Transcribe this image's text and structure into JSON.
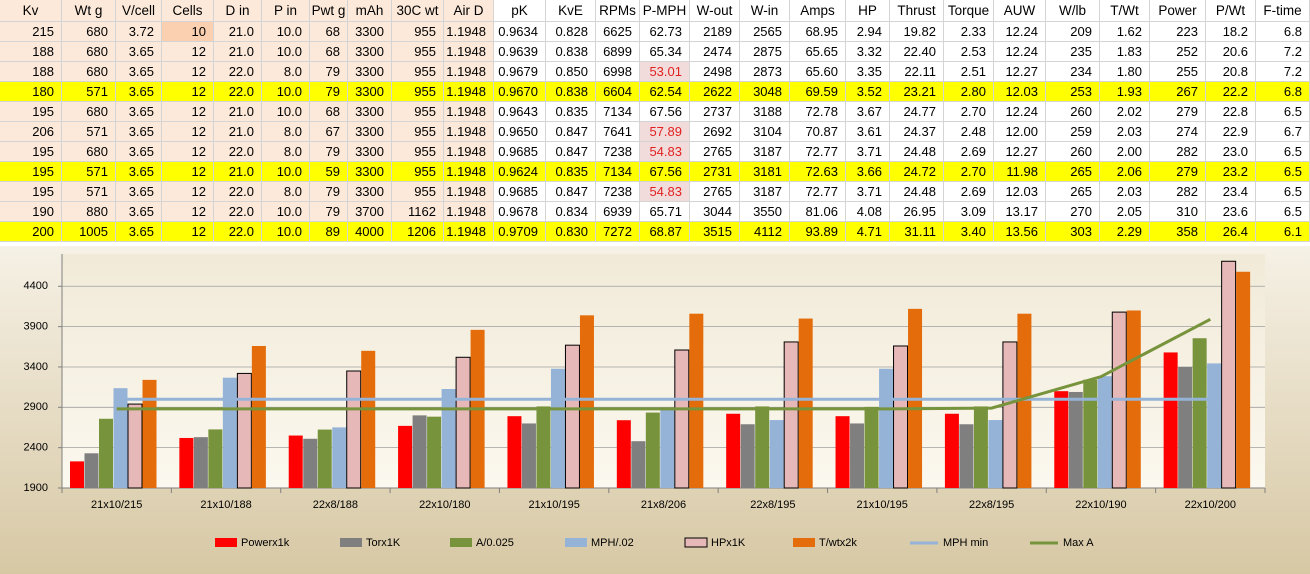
{
  "table": {
    "header": [
      "Kv",
      "Wt g",
      "V/cell",
      "Cells",
      "D in",
      "P in",
      "Pwt g",
      "mAh",
      "30C wt",
      "Air D",
      "pK",
      "KvE",
      "RPMs",
      "P-MPH",
      "W-out",
      "W-in",
      "Amps",
      "HP",
      "Thrust",
      "Torque",
      "AUW",
      "W/lb",
      "T/Wt",
      "Power",
      "P/Wt",
      "F-time"
    ],
    "rows": [
      [
        "215",
        "680",
        "3.72",
        "10",
        "21.0",
        "10.0",
        "68",
        "3300",
        "955",
        "1.1948",
        "0.9634",
        "0.828",
        "6625",
        "62.73",
        "2189",
        "2565",
        "68.95",
        "2.94",
        "19.82",
        "2.33",
        "12.24",
        "209",
        "1.62",
        "223",
        "18.2",
        "6.8"
      ],
      [
        "188",
        "680",
        "3.65",
        "12",
        "21.0",
        "10.0",
        "68",
        "3300",
        "955",
        "1.1948",
        "0.9639",
        "0.838",
        "6899",
        "65.34",
        "2474",
        "2875",
        "65.65",
        "3.32",
        "22.40",
        "2.53",
        "12.24",
        "235",
        "1.83",
        "252",
        "20.6",
        "7.2"
      ],
      [
        "188",
        "680",
        "3.65",
        "12",
        "22.0",
        "8.0",
        "79",
        "3300",
        "955",
        "1.1948",
        "0.9679",
        "0.850",
        "6998",
        "53.01",
        "2498",
        "2873",
        "65.60",
        "3.35",
        "22.11",
        "2.51",
        "12.27",
        "234",
        "1.80",
        "255",
        "20.8",
        "7.2"
      ],
      [
        "180",
        "571",
        "3.65",
        "12",
        "22.0",
        "10.0",
        "79",
        "3300",
        "955",
        "1.1948",
        "0.9670",
        "0.838",
        "6604",
        "62.54",
        "2622",
        "3048",
        "69.59",
        "3.52",
        "23.21",
        "2.80",
        "12.03",
        "253",
        "1.93",
        "267",
        "22.2",
        "6.8"
      ],
      [
        "195",
        "680",
        "3.65",
        "12",
        "21.0",
        "10.0",
        "68",
        "3300",
        "955",
        "1.1948",
        "0.9643",
        "0.835",
        "7134",
        "67.56",
        "2737",
        "3188",
        "72.78",
        "3.67",
        "24.77",
        "2.70",
        "12.24",
        "260",
        "2.02",
        "279",
        "22.8",
        "6.5"
      ],
      [
        "206",
        "571",
        "3.65",
        "12",
        "21.0",
        "8.0",
        "67",
        "3300",
        "955",
        "1.1948",
        "0.9650",
        "0.847",
        "7641",
        "57.89",
        "2692",
        "3104",
        "70.87",
        "3.61",
        "24.37",
        "2.48",
        "12.00",
        "259",
        "2.03",
        "274",
        "22.9",
        "6.7"
      ],
      [
        "195",
        "680",
        "3.65",
        "12",
        "22.0",
        "8.0",
        "79",
        "3300",
        "955",
        "1.1948",
        "0.9685",
        "0.847",
        "7238",
        "54.83",
        "2765",
        "3187",
        "72.77",
        "3.71",
        "24.48",
        "2.69",
        "12.27",
        "260",
        "2.00",
        "282",
        "23.0",
        "6.5"
      ],
      [
        "195",
        "571",
        "3.65",
        "12",
        "21.0",
        "10.0",
        "59",
        "3300",
        "955",
        "1.1948",
        "0.9624",
        "0.835",
        "7134",
        "67.56",
        "2731",
        "3181",
        "72.63",
        "3.66",
        "24.72",
        "2.70",
        "11.98",
        "265",
        "2.06",
        "279",
        "23.2",
        "6.5"
      ],
      [
        "195",
        "571",
        "3.65",
        "12",
        "22.0",
        "8.0",
        "79",
        "3300",
        "955",
        "1.1948",
        "0.9685",
        "0.847",
        "7238",
        "54.83",
        "2765",
        "3187",
        "72.77",
        "3.71",
        "24.48",
        "2.69",
        "12.03",
        "265",
        "2.03",
        "282",
        "23.4",
        "6.5"
      ],
      [
        "190",
        "880",
        "3.65",
        "12",
        "22.0",
        "10.0",
        "79",
        "3700",
        "1162",
        "1.1948",
        "0.9678",
        "0.834",
        "6939",
        "65.71",
        "3044",
        "3550",
        "81.06",
        "4.08",
        "26.95",
        "3.09",
        "13.17",
        "270",
        "2.05",
        "310",
        "23.6",
        "6.5"
      ],
      [
        "200",
        "1005",
        "3.65",
        "12",
        "22.0",
        "10.0",
        "89",
        "4000",
        "1206",
        "1.1948",
        "0.9709",
        "0.830",
        "7272",
        "68.87",
        "3515",
        "4112",
        "93.89",
        "4.71",
        "31.11",
        "3.40",
        "13.56",
        "303",
        "2.29",
        "358",
        "26.4",
        "6.1"
      ]
    ]
  },
  "chart_data": {
    "type": "bar",
    "categories": [
      "21x10/215",
      "21x10/188",
      "22x8/188",
      "22x10/180",
      "21x10/195",
      "21x8/206",
      "22x8/195",
      "21x10/195",
      "22x8/195",
      "22x10/190",
      "22x10/200"
    ],
    "ylim": [
      1900,
      4800
    ],
    "yticks": [
      1900,
      2400,
      2900,
      3400,
      3900,
      4400
    ],
    "grid": true,
    "legend": "bottom",
    "series": [
      {
        "name": "Powerx1k",
        "color": "#ff0000",
        "values": [
          2230,
          2520,
          2550,
          2670,
          2790,
          2740,
          2820,
          2790,
          2820,
          3100,
          3580
        ]
      },
      {
        "name": "Torx1K",
        "color": "#7f7f7f",
        "values": [
          2330,
          2530,
          2510,
          2800,
          2700,
          2480,
          2690,
          2700,
          2690,
          3090,
          3400
        ]
      },
      {
        "name": "A/0.025",
        "color": "#77933c",
        "values": [
          2758,
          2626,
          2624,
          2784,
          2911,
          2835,
          2911,
          2905,
          2911,
          3242,
          3756
        ]
      },
      {
        "name": "MPH/.02",
        "color": "#95b3d7",
        "values": [
          3137,
          3267,
          2651,
          3127,
          3378,
          2895,
          2742,
          3378,
          2742,
          3286,
          3444
        ]
      },
      {
        "name": "HPx1K",
        "color": "#e6b9b8",
        "values": [
          2940,
          3320,
          3350,
          3520,
          3670,
          3610,
          3710,
          3660,
          3710,
          4080,
          4710
        ]
      },
      {
        "name": "T/wtx2k",
        "color": "#e46c0a",
        "values": [
          3240,
          3660,
          3600,
          3860,
          4040,
          4060,
          4000,
          4120,
          4060,
          4100,
          4580
        ]
      },
      {
        "name": "MPH min",
        "type": "line",
        "color": "#95b3d7",
        "values": [
          3000,
          3000,
          3000,
          3000,
          3000,
          3000,
          3000,
          3000,
          3000,
          3000,
          3000
        ]
      },
      {
        "name": "Max A",
        "type": "line",
        "color": "#77933c",
        "values": [
          2880,
          2880,
          2880,
          2880,
          2880,
          2880,
          2880,
          2880,
          2890,
          3280,
          3990
        ]
      }
    ]
  }
}
